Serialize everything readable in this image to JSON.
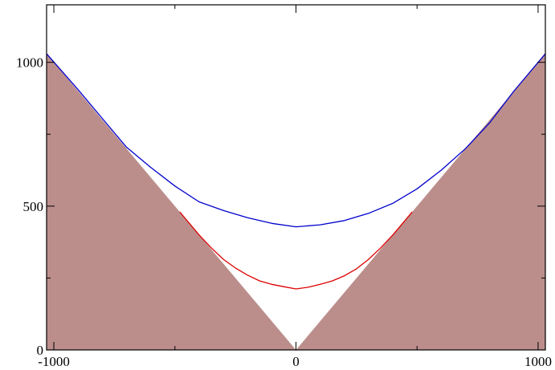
{
  "chart_data": {
    "type": "area",
    "title": "",
    "xlabel": "",
    "ylabel": "",
    "xlim": [
      -1030,
      1030
    ],
    "ylim": [
      0,
      1200
    ],
    "xticks": [
      -1000,
      0,
      1000
    ],
    "yticks": [
      0,
      500,
      1000
    ],
    "xtick_labels": [
      "-1000",
      "0",
      "1000"
    ],
    "ytick_labels": [
      "0",
      "500",
      "1000"
    ],
    "minor_xtick_step": 500,
    "minor_ytick_step": 250,
    "grid": false,
    "legend": "none",
    "shaded_region": {
      "name": "",
      "description_boundary": "y = |x|",
      "color": "#bb8e8c",
      "boundary_x": [
        -1030,
        0,
        1030
      ],
      "boundary_y": [
        1030,
        0,
        1030
      ]
    },
    "series": [
      {
        "color": "#0000cc",
        "x": [
          -1030,
          -900,
          -800,
          -700,
          -600,
          -500,
          -400,
          -300,
          -200,
          -100,
          0,
          100,
          200,
          300,
          400,
          500,
          600,
          700,
          800,
          900,
          1030
        ],
        "y": [
          1030,
          905,
          805,
          705,
          635,
          570,
          515,
          485,
          460,
          440,
          428,
          435,
          450,
          475,
          510,
          560,
          625,
          700,
          790,
          900,
          1030
        ]
      },
      {
        "color": "#dd0000",
        "x": [
          -480,
          -400,
          -350,
          -300,
          -250,
          -200,
          -150,
          -100,
          -50,
          0,
          50,
          100,
          150,
          200,
          250,
          300,
          350,
          400,
          450,
          480
        ],
        "y": [
          480,
          400,
          355,
          315,
          285,
          260,
          240,
          228,
          220,
          212,
          218,
          228,
          240,
          258,
          282,
          315,
          355,
          400,
          450,
          480
        ]
      }
    ]
  }
}
